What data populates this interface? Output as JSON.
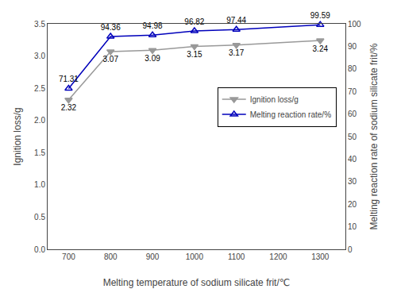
{
  "chart_data": {
    "type": "line",
    "x": [
      700,
      800,
      900,
      1000,
      1100,
      1300
    ],
    "xlabel": "Melting temperature of sodium silicate frit/℃",
    "ylabel": "Ignition loss/g",
    "y2label": "Melting reaction rate of sodium silicate frit/%",
    "xlim": [
      650,
      1360
    ],
    "xticks": [
      700,
      800,
      900,
      1000,
      1100,
      1200,
      1300
    ],
    "ylim": [
      0,
      3.5
    ],
    "yticks": [
      {
        "value": 0,
        "label": "0.0"
      },
      0.5,
      {
        "value": 1,
        "label": "1.0"
      },
      1.5,
      {
        "value": 2,
        "label": "2.0"
      },
      2.5,
      {
        "value": 3,
        "label": "3.0"
      },
      3.5
    ],
    "y2lim": [
      0,
      100
    ],
    "y2ticks": [
      0,
      10,
      20,
      30,
      40,
      50,
      60,
      70,
      80,
      90,
      100
    ],
    "series": [
      {
        "name": "Ignition loss/g",
        "color": "#999999",
        "marker": "triangle-down",
        "values": [
          2.32,
          3.07,
          3.09,
          3.15,
          3.17,
          3.24
        ]
      },
      {
        "name": "Melting reaction rate/%",
        "color": "#0000bb",
        "marker": "triangle-up-open",
        "axis": "y2",
        "values": [
          71.31,
          94.36,
          94.98,
          96.82,
          97.44,
          99.59
        ]
      }
    ],
    "data_labels": true,
    "grid": false,
    "legend": "right"
  }
}
